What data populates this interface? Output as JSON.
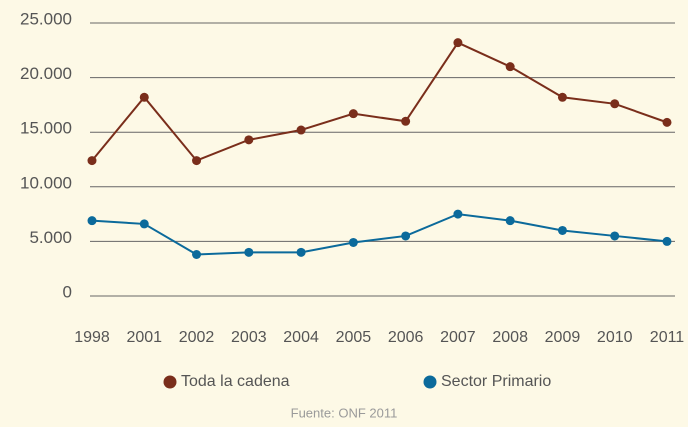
{
  "chart_data": {
    "type": "line",
    "categories": [
      "1998",
      "2001",
      "2002",
      "2003",
      "2004",
      "2005",
      "2006",
      "2007",
      "2008",
      "2009",
      "2010",
      "2011"
    ],
    "series": [
      {
        "name": "Toda la cadena",
        "color": "#7a2e1b",
        "values": [
          12400,
          18200,
          12400,
          14300,
          15200,
          16700,
          16000,
          23200,
          21000,
          18200,
          17600,
          15900
        ]
      },
      {
        "name": "Sector Primario",
        "color": "#0b6a9b",
        "values": [
          6900,
          6600,
          3800,
          4000,
          4000,
          4900,
          5500,
          7500,
          6900,
          6000,
          5500,
          5000
        ]
      }
    ],
    "ylim": [
      0,
      25000
    ],
    "yticks": [
      0,
      {
        "value": 5000,
        "label": "5.000"
      },
      {
        "value": 10000,
        "label": "10.000"
      },
      {
        "value": 15000,
        "label": "15.000"
      },
      {
        "value": 20000,
        "label": "20.000"
      },
      {
        "value": 25000,
        "label": "25.000"
      }
    ],
    "grid": true,
    "source": "Fuente: ONF 2011"
  }
}
